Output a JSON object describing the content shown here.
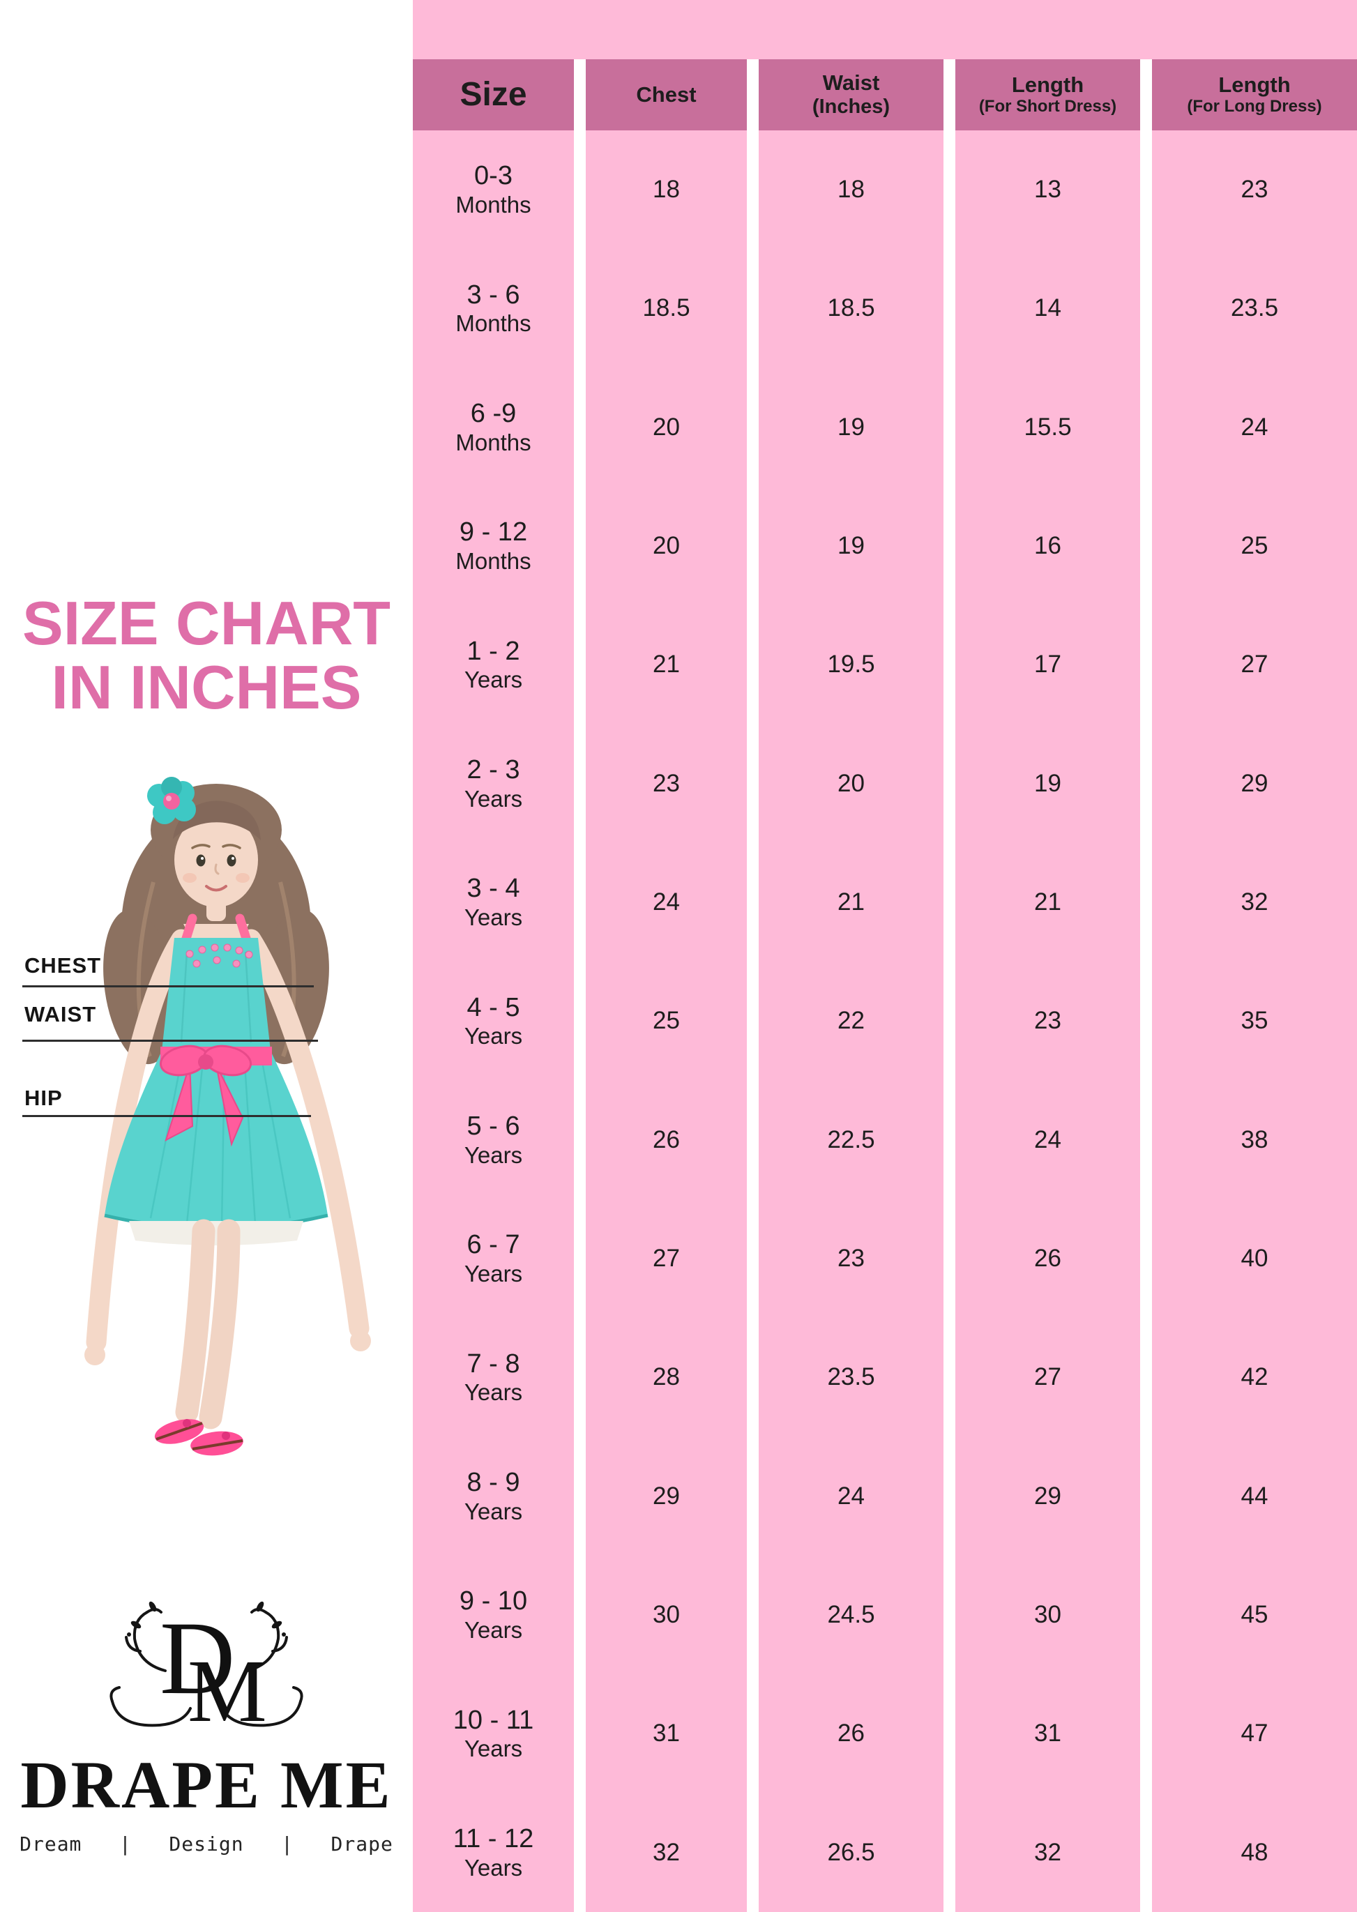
{
  "title": {
    "line1": "SIZE CHART",
    "line2": "IN INCHES"
  },
  "figure": {
    "chest_label": "CHEST",
    "waist_label": "WAIST",
    "hip_label": "HIP"
  },
  "logo": {
    "monogram_d": "D",
    "monogram_m": "M",
    "brand": "DRAPE ME",
    "tagline": "Dream   |   Design   |   Drape"
  },
  "colors": {
    "body_pink": "#FEBAD8",
    "header_rose": "#C86F9B",
    "title_pink": "#DF6EA8",
    "dress_teal": "#59D3CE",
    "sash_pink": "#FF5C9D",
    "text_ink": "#1d1d1d"
  },
  "table": {
    "headers": [
      {
        "main": "Size",
        "sub": ""
      },
      {
        "main": "Chest",
        "sub": ""
      },
      {
        "main": "Waist",
        "sub": "(Inches)"
      },
      {
        "main": "Length",
        "sub": "(For Short Dress)"
      },
      {
        "main": "Length",
        "sub": "(For Long Dress)"
      }
    ],
    "rows": [
      {
        "size_range": "0-3",
        "size_unit": "Months",
        "chest": "18",
        "waist": "18",
        "length_short": "13",
        "length_long": "23"
      },
      {
        "size_range": "3 - 6",
        "size_unit": "Months",
        "chest": "18.5",
        "waist": "18.5",
        "length_short": "14",
        "length_long": "23.5"
      },
      {
        "size_range": "6 -9",
        "size_unit": "Months",
        "chest": "20",
        "waist": "19",
        "length_short": "15.5",
        "length_long": "24"
      },
      {
        "size_range": "9 - 12",
        "size_unit": "Months",
        "chest": "20",
        "waist": "19",
        "length_short": "16",
        "length_long": "25"
      },
      {
        "size_range": "1 - 2",
        "size_unit": "Years",
        "chest": "21",
        "waist": "19.5",
        "length_short": "17",
        "length_long": "27"
      },
      {
        "size_range": "2 - 3",
        "size_unit": "Years",
        "chest": "23",
        "waist": "20",
        "length_short": "19",
        "length_long": "29"
      },
      {
        "size_range": "3 - 4",
        "size_unit": "Years",
        "chest": "24",
        "waist": "21",
        "length_short": "21",
        "length_long": "32"
      },
      {
        "size_range": "4 - 5",
        "size_unit": "Years",
        "chest": "25",
        "waist": "22",
        "length_short": "23",
        "length_long": "35"
      },
      {
        "size_range": "5 - 6",
        "size_unit": "Years",
        "chest": "26",
        "waist": "22.5",
        "length_short": "24",
        "length_long": "38"
      },
      {
        "size_range": "6 - 7",
        "size_unit": "Years",
        "chest": "27",
        "waist": "23",
        "length_short": "26",
        "length_long": "40"
      },
      {
        "size_range": "7 - 8",
        "size_unit": "Years",
        "chest": "28",
        "waist": "23.5",
        "length_short": "27",
        "length_long": "42"
      },
      {
        "size_range": "8 - 9",
        "size_unit": "Years",
        "chest": "29",
        "waist": "24",
        "length_short": "29",
        "length_long": "44"
      },
      {
        "size_range": "9 - 10",
        "size_unit": "Years",
        "chest": "30",
        "waist": "24.5",
        "length_short": "30",
        "length_long": "45"
      },
      {
        "size_range": "10 - 11",
        "size_unit": "Years",
        "chest": "31",
        "waist": "26",
        "length_short": "31",
        "length_long": "47"
      },
      {
        "size_range": "11 - 12",
        "size_unit": "Years",
        "chest": "32",
        "waist": "26.5",
        "length_short": "32",
        "length_long": "48"
      }
    ]
  },
  "chart_data": {
    "type": "table",
    "title": "SIZE CHART IN INCHES",
    "columns": [
      "Size",
      "Chest",
      "Waist (Inches)",
      "Length (For Short Dress)",
      "Length (For Long Dress)"
    ],
    "rows": [
      [
        "0-3 Months",
        18,
        18,
        13,
        23
      ],
      [
        "3-6 Months",
        18.5,
        18.5,
        14,
        23.5
      ],
      [
        "6-9 Months",
        20,
        19,
        15.5,
        24
      ],
      [
        "9-12 Months",
        20,
        19,
        16,
        25
      ],
      [
        "1-2 Years",
        21,
        19.5,
        17,
        27
      ],
      [
        "2-3 Years",
        23,
        20,
        19,
        29
      ],
      [
        "3-4 Years",
        24,
        21,
        21,
        32
      ],
      [
        "4-5 Years",
        25,
        22,
        23,
        35
      ],
      [
        "5-6 Years",
        26,
        22.5,
        24,
        38
      ],
      [
        "6-7 Years",
        27,
        23,
        26,
        40
      ],
      [
        "7-8 Years",
        28,
        23.5,
        27,
        42
      ],
      [
        "8-9 Years",
        29,
        24,
        29,
        44
      ],
      [
        "9-10 Years",
        30,
        24.5,
        30,
        45
      ],
      [
        "10-11 Years",
        31,
        26,
        31,
        47
      ],
      [
        "11-12 Years",
        32,
        26.5,
        32,
        48
      ]
    ]
  }
}
